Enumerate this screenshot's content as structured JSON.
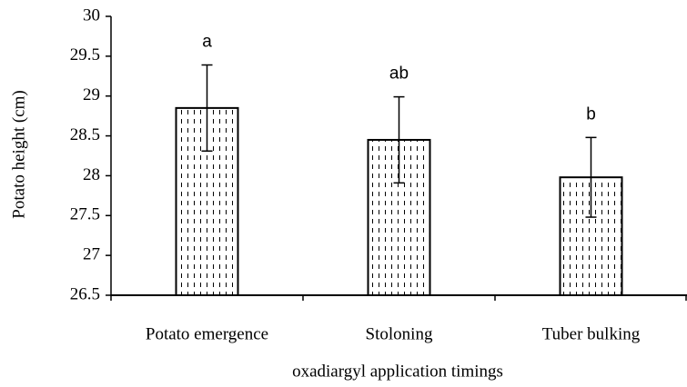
{
  "chart_data": {
    "type": "bar",
    "x_label": "oxadiargyl application timings",
    "y_label": "Potato height (cm)",
    "categories": [
      "Potato emergence",
      "Stoloning",
      "Tuber bulking"
    ],
    "values": [
      28.85,
      28.45,
      27.98
    ],
    "errors": [
      0.54,
      0.54,
      0.5
    ],
    "annotations": [
      "a",
      "ab",
      "b"
    ],
    "ylim": [
      26.5,
      30
    ],
    "yticks": [
      26.5,
      27,
      27.5,
      28,
      28.5,
      29,
      29.5,
      30
    ],
    "grid": false
  }
}
